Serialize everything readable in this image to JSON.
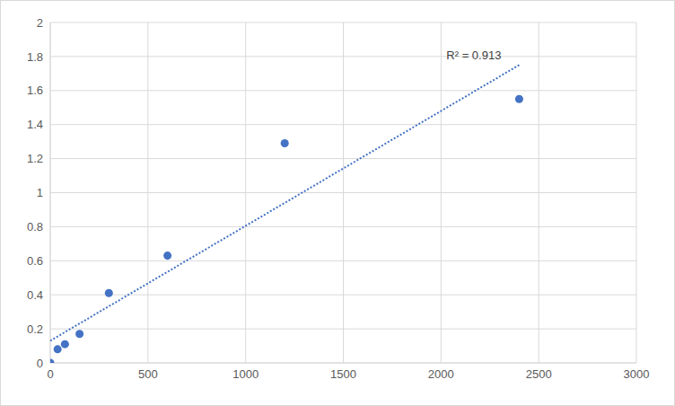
{
  "chart_data": {
    "type": "scatter",
    "x": [
      0,
      37.5,
      75,
      150,
      300,
      600,
      1200,
      2400
    ],
    "values": [
      0,
      0.08,
      0.11,
      0.17,
      0.41,
      0.63,
      1.29,
      1.55
    ],
    "color": "#4472c4",
    "marker": "circle",
    "trendline": {
      "x": [
        0,
        2400
      ],
      "values": [
        0.13,
        1.75
      ],
      "line_style": "dotted"
    },
    "annotation": "R² = 0.913",
    "xlim": [
      0,
      3000
    ],
    "xticks": [
      0,
      500,
      1000,
      1500,
      2000,
      2500,
      3000
    ],
    "ylim": [
      0,
      2
    ],
    "yticks": [
      0,
      0.2,
      0.4,
      0.6,
      0.8,
      1,
      1.2,
      1.4,
      1.6,
      1.8,
      2
    ],
    "grid": true
  }
}
